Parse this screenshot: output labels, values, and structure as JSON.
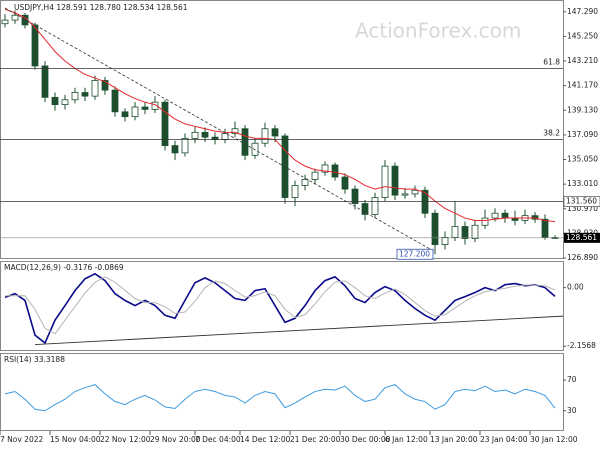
{
  "chart_data": [
    {
      "type": "candlestick",
      "title": "USDJPY,H4 128.591 128.780 128.534 128.561",
      "watermark": "ActionForex.com",
      "open": [
        146.3,
        146.6,
        147.0,
        146.2,
        142.8,
        140.2,
        139.6,
        140.0,
        140.6,
        140.3,
        141.6,
        140.8,
        139.0,
        138.6,
        139.4,
        139.2,
        139.8,
        136.2,
        135.6,
        136.8,
        137.3,
        136.9,
        136.7,
        137.2,
        137.6,
        135.4,
        136.4,
        137.6,
        137.0,
        131.9,
        132.9,
        133.4,
        134.0,
        134.6,
        133.6,
        132.6,
        131.4,
        130.5,
        131.9,
        134.5,
        132.1,
        132.2,
        132.5,
        130.6,
        128.0,
        128.6,
        129.5,
        128.5,
        129.6,
        130.2,
        130.6,
        130.2,
        130.0,
        130.4,
        130.1,
        128.591
      ],
      "high": [
        147.1,
        147.4,
        147.2,
        146.4,
        143.2,
        140.6,
        140.4,
        141.0,
        141.0,
        142.0,
        141.9,
        141.1,
        139.3,
        139.8,
        139.8,
        140.3,
        140.0,
        136.6,
        137.2,
        137.8,
        137.7,
        137.3,
        137.6,
        138.2,
        137.9,
        136.8,
        138.1,
        137.9,
        137.2,
        133.3,
        133.8,
        134.3,
        134.9,
        134.8,
        133.9,
        132.9,
        131.7,
        132.3,
        135.0,
        134.8,
        132.7,
        132.9,
        132.8,
        130.9,
        129.1,
        131.6,
        129.9,
        130.0,
        130.9,
        131.0,
        130.9,
        130.8,
        130.9,
        130.7,
        130.5,
        128.78
      ],
      "low": [
        146.0,
        146.3,
        145.9,
        142.5,
        139.8,
        139.1,
        139.2,
        139.7,
        139.9,
        140.0,
        140.4,
        138.6,
        138.2,
        138.3,
        138.8,
        138.9,
        135.8,
        135.0,
        135.3,
        136.4,
        136.5,
        136.3,
        136.4,
        136.9,
        135.0,
        135.1,
        136.1,
        136.5,
        131.4,
        131.2,
        132.5,
        133.0,
        133.7,
        133.3,
        132.2,
        130.9,
        130.0,
        130.2,
        131.6,
        131.7,
        131.8,
        131.9,
        130.2,
        127.2,
        127.6,
        128.3,
        128.0,
        128.2,
        129.3,
        129.9,
        129.8,
        129.6,
        129.7,
        129.8,
        128.4,
        128.534
      ],
      "close": [
        146.6,
        147.0,
        146.2,
        142.8,
        140.2,
        139.6,
        140.0,
        140.6,
        140.3,
        141.6,
        140.8,
        139.0,
        138.6,
        139.4,
        139.2,
        139.8,
        136.2,
        135.6,
        136.8,
        137.3,
        136.9,
        136.7,
        137.2,
        137.6,
        135.4,
        136.4,
        137.6,
        137.0,
        131.9,
        132.9,
        133.4,
        134.0,
        134.6,
        133.6,
        132.6,
        131.4,
        130.5,
        131.9,
        134.5,
        132.1,
        132.2,
        132.5,
        130.6,
        128.0,
        128.6,
        129.5,
        128.5,
        129.6,
        130.2,
        130.6,
        130.2,
        130.0,
        130.4,
        130.1,
        128.6,
        128.561
      ],
      "up_color": "#ffffff",
      "down_color": "#1d4f2f",
      "candle_color": "#1d4f2f",
      "ma_values": [
        147.5,
        147.2,
        146.8,
        146.0,
        145.0,
        144.0,
        143.2,
        142.6,
        142.1,
        141.8,
        141.5,
        141.0,
        140.5,
        140.1,
        139.8,
        139.6,
        139.0,
        138.4,
        138.0,
        137.8,
        137.6,
        137.4,
        137.3,
        137.3,
        137.0,
        136.8,
        136.8,
        136.7,
        135.8,
        135.0,
        134.5,
        134.2,
        134.1,
        134.0,
        133.8,
        133.4,
        132.9,
        132.6,
        132.8,
        132.7,
        132.6,
        132.6,
        132.3,
        131.6,
        131.0,
        130.6,
        130.2,
        130.0,
        130.0,
        130.1,
        130.2,
        130.2,
        130.2,
        130.2,
        130.0,
        129.9
      ],
      "ma_color": "#e8262b",
      "trendline": {
        "x": [
          0,
          43
        ],
        "values": [
          147.6,
          127.4
        ],
        "color": "#333333"
      },
      "levels": [
        {
          "value": 142.58,
          "label": "61.8"
        },
        {
          "value": 136.72,
          "label": "38.2"
        },
        {
          "value": 131.56,
          "label": "131.560"
        }
      ],
      "low_annotation": {
        "value": 127.2,
        "label": "127.200"
      },
      "ylim": [
        126.89,
        148.1
      ],
      "yticks": [
        {
          "value": 147.29,
          "label": "147.290"
        },
        {
          "value": 145.25,
          "label": "145.250"
        },
        {
          "value": 143.21,
          "label": "143.210"
        },
        {
          "value": 141.17,
          "label": "141.170"
        },
        {
          "value": 139.13,
          "label": "139.130"
        },
        {
          "value": 137.09,
          "label": "137.090"
        },
        {
          "value": 135.05,
          "label": "135.050"
        },
        {
          "value": 133.01,
          "label": "133.010"
        },
        {
          "value": 130.97,
          "label": "130.970"
        },
        {
          "value": 128.93,
          "label": "128.930"
        },
        {
          "value": 126.89,
          "label": "126.890"
        }
      ]
    },
    {
      "type": "line",
      "title": "MACD(12,26,9) -0.3176 -0.0869",
      "series": [
        {
          "color": "#0a0a8c",
          "values": [
            -0.36,
            -0.22,
            -0.47,
            -1.75,
            -2.04,
            -1.2,
            -0.66,
            -0.11,
            0.33,
            0.51,
            0.26,
            -0.22,
            -0.47,
            -0.66,
            -0.47,
            -0.66,
            -1.02,
            -1.13,
            -0.47,
            0.18,
            0.36,
            0.18,
            -0.11,
            -0.4,
            -0.47,
            -0.11,
            -0.04,
            -0.66,
            -1.28,
            -1.13,
            -0.66,
            -0.11,
            0.26,
            0.4,
            0.07,
            -0.4,
            -0.55,
            -0.18,
            0.04,
            -0.11,
            -0.47,
            -0.77,
            -1.02,
            -1.2,
            -0.84,
            -0.47,
            -0.33,
            -0.18,
            0.0,
            -0.11,
            0.11,
            0.15,
            0.07,
            0.11,
            0.0,
            -0.32
          ]
        },
        {
          "color": "#b4b4b4",
          "values": [
            -0.3,
            -0.3,
            -0.3,
            -0.8,
            -1.5,
            -1.7,
            -1.2,
            -0.7,
            -0.2,
            0.2,
            0.4,
            0.2,
            -0.1,
            -0.4,
            -0.55,
            -0.55,
            -0.7,
            -0.95,
            -0.9,
            -0.5,
            0.0,
            0.25,
            0.15,
            -0.1,
            -0.35,
            -0.3,
            -0.15,
            -0.3,
            -0.8,
            -1.1,
            -1.0,
            -0.6,
            -0.15,
            0.2,
            0.25,
            0.0,
            -0.3,
            -0.4,
            -0.2,
            -0.05,
            -0.25,
            -0.55,
            -0.85,
            -1.05,
            -1.0,
            -0.75,
            -0.5,
            -0.3,
            -0.15,
            -0.08,
            -0.02,
            0.05,
            0.1,
            0.1,
            0.07,
            -0.09
          ]
        }
      ],
      "trendline": {
        "x": [
          3,
          55.8
        ],
        "values": [
          -2.1,
          -1.05
        ],
        "color": "#333333"
      },
      "ylim": [
        -2.3,
        0.91
      ],
      "yticks": [
        {
          "value": 0,
          "label": "0.00"
        },
        {
          "value": -2.1568,
          "label": "-2.1568"
        }
      ]
    },
    {
      "type": "line",
      "title": "RSI(14) 33.3188",
      "series": [
        {
          "color": "#3d9be0",
          "values": [
            52,
            55,
            45,
            32,
            30,
            38,
            45,
            55,
            60,
            64,
            52,
            42,
            38,
            45,
            50,
            44,
            35,
            33,
            45,
            55,
            58,
            55,
            50,
            48,
            40,
            50,
            55,
            52,
            34,
            40,
            48,
            55,
            58,
            57,
            62,
            50,
            42,
            45,
            60,
            64,
            52,
            45,
            42,
            32,
            38,
            55,
            58,
            56,
            62,
            55,
            57,
            52,
            58,
            55,
            50,
            33.3188
          ]
        }
      ],
      "ylim": [
        5,
        102.5
      ],
      "yticks": [
        70,
        30
      ],
      "xticks": [
        {
          "value": 0,
          "label": "7 Nov 2022"
        },
        {
          "value": 5,
          "label": "15 Nov 04:00"
        },
        {
          "value": 10,
          "label": "22 Nov 12:00"
        },
        {
          "value": 15,
          "label": "29 Nov 20:00"
        },
        {
          "value": 19.5,
          "label": "7 Dec 04:00"
        },
        {
          "value": 24,
          "label": "14 Dec 12:00"
        },
        {
          "value": 29,
          "label": "21 Dec 20:00"
        },
        {
          "value": 34,
          "label": "30 Dec 00:00"
        },
        {
          "value": 38.5,
          "label": "6 Jan 12:00"
        },
        {
          "value": 43,
          "label": "13 Jan 20:00"
        },
        {
          "value": 48,
          "label": "23 Jan 04:00"
        },
        {
          "value": 53,
          "label": "30 Jan 12:00"
        }
      ]
    }
  ]
}
